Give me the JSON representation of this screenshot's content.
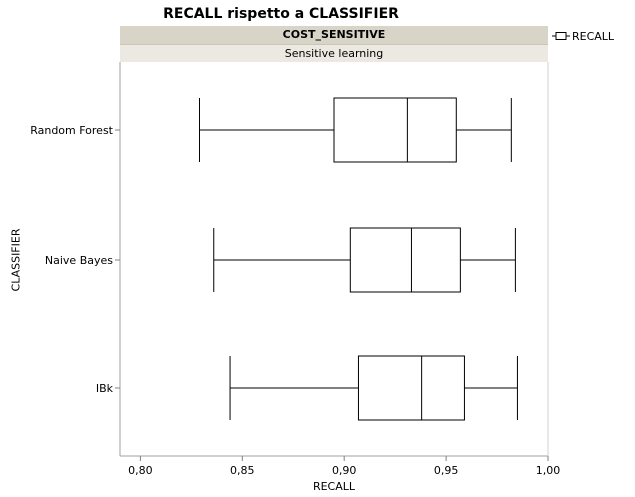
{
  "title": "RECALL rispetto a CLASSIFIER",
  "panel_header": "COST_SENSITIVE",
  "panel_subheader": "Sensitive learning",
  "legend": {
    "label": "RECALL",
    "icon": "box-legend-icon"
  },
  "chart_data": {
    "type": "box",
    "title": "RECALL rispetto a CLASSIFIER",
    "xlabel": "RECALL",
    "ylabel": "CLASSIFIER",
    "xlim": [
      0.79,
      1.0
    ],
    "xticks": [
      0.8,
      0.85,
      0.9,
      0.95,
      1.0
    ],
    "xtick_labels": [
      "0,80",
      "0,85",
      "0,90",
      "0,95",
      "1,00"
    ],
    "categories": [
      "Random Forest",
      "Naive Bayes",
      "IBk"
    ],
    "boxes": [
      {
        "name": "Random Forest",
        "min": 0.829,
        "q1": 0.895,
        "median": 0.931,
        "q3": 0.955,
        "max": 0.982
      },
      {
        "name": "Naive Bayes",
        "min": 0.836,
        "q1": 0.903,
        "median": 0.933,
        "q3": 0.957,
        "max": 0.984
      },
      {
        "name": "IBk",
        "min": 0.844,
        "q1": 0.907,
        "median": 0.938,
        "q3": 0.959,
        "max": 0.985
      }
    ],
    "grid": false,
    "legend_position": "top-right"
  }
}
